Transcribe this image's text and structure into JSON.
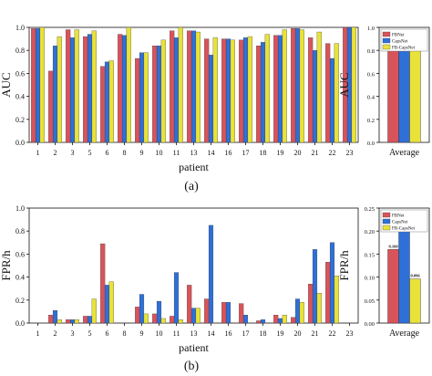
{
  "colors": {
    "FBNet": "#d9535a",
    "CapsNet": "#2f6fd8",
    "FB-CapsNet": "#e9e23a"
  },
  "chart_data": [
    {
      "id": "auc-patient",
      "type": "bar",
      "ylabel": "AUC",
      "xlabel": "patient",
      "ylim": [
        0,
        1.0
      ],
      "yticks": [
        0.0,
        0.2,
        0.4,
        0.6,
        0.8,
        1.0
      ],
      "ytick_labels": [
        "0.0",
        "0.2",
        "0.4",
        "0.6",
        "0.8",
        "1.0"
      ],
      "categories": [
        "1",
        "2",
        "3",
        "5",
        "6",
        "8",
        "9",
        "10",
        "11",
        "13",
        "14",
        "16",
        "17",
        "18",
        "19",
        "20",
        "21",
        "22",
        "23"
      ],
      "series": [
        {
          "name": "FBNet",
          "values": [
            0.99,
            0.62,
            0.98,
            0.92,
            0.66,
            0.94,
            0.73,
            0.84,
            0.97,
            0.97,
            0.9,
            0.9,
            0.89,
            0.84,
            0.93,
            0.99,
            0.91,
            0.86,
            1.0
          ]
        },
        {
          "name": "CapsNet",
          "values": [
            0.99,
            0.84,
            0.91,
            0.94,
            0.7,
            0.93,
            0.78,
            0.84,
            0.91,
            0.97,
            0.76,
            0.9,
            0.91,
            0.87,
            0.93,
            0.99,
            0.8,
            0.73,
            1.0
          ]
        },
        {
          "name": "FB-CapsNet",
          "values": [
            1.0,
            0.92,
            0.98,
            0.97,
            0.71,
            1.0,
            0.78,
            0.89,
            1.0,
            0.96,
            0.91,
            0.89,
            0.92,
            0.94,
            0.98,
            0.98,
            0.96,
            0.86,
            1.0
          ]
        }
      ],
      "caption": "(a)"
    },
    {
      "id": "auc-average",
      "type": "bar",
      "ylabel": "AUC",
      "xlabel": "Average",
      "ylim": [
        0,
        1.0
      ],
      "yticks": [
        0.0,
        0.2,
        0.4,
        0.6,
        0.8,
        1.0
      ],
      "ytick_labels": [
        "0.0",
        "0.2",
        "0.4",
        "0.6",
        "0.8",
        "1.0"
      ],
      "legend": [
        "FBNet",
        "CapsNet",
        "FB-CapsNet"
      ],
      "series": [
        {
          "name": "FBNet",
          "value": 0.888,
          "label": "0.888"
        },
        {
          "name": "CapsNet",
          "value": 0.877,
          "label": "0.877"
        },
        {
          "name": "FB-CapsNet",
          "value": 0.928,
          "label": "0.928"
        }
      ]
    },
    {
      "id": "fpr-patient",
      "type": "bar",
      "ylabel": "FPR/h",
      "xlabel": "patient",
      "ylim": [
        0,
        1.0
      ],
      "yticks": [
        0.0,
        0.2,
        0.4,
        0.6,
        0.8,
        1.0
      ],
      "ytick_labels": [
        "0.0",
        "0.2",
        "0.4",
        "0.6",
        "0.8",
        "1.0"
      ],
      "categories": [
        "1",
        "2",
        "3",
        "5",
        "6",
        "8",
        "9",
        "10",
        "11",
        "13",
        "14",
        "16",
        "17",
        "18",
        "19",
        "20",
        "21",
        "22",
        "23"
      ],
      "series": [
        {
          "name": "FBNet",
          "values": [
            0,
            0.07,
            0.03,
            0.06,
            0.69,
            0,
            0.14,
            0.08,
            0.06,
            0.33,
            0.21,
            0.18,
            0.17,
            0.02,
            0.07,
            0.05,
            0.34,
            0.53,
            0
          ]
        },
        {
          "name": "CapsNet",
          "values": [
            0,
            0.11,
            0.03,
            0.06,
            0.33,
            0,
            0.25,
            0.19,
            0.44,
            0.13,
            0.85,
            0.18,
            0.07,
            0.03,
            0.04,
            0.21,
            0.64,
            0.7,
            0
          ]
        },
        {
          "name": "FB-CapsNet",
          "values": [
            0,
            0.03,
            0.03,
            0.21,
            0.36,
            0,
            0.08,
            0.04,
            0.03,
            0.13,
            0,
            0,
            0,
            0,
            0.07,
            0.18,
            0.26,
            0.41,
            0
          ]
        }
      ],
      "caption": "(b)"
    },
    {
      "id": "fpr-average",
      "type": "bar",
      "ylabel": "FPR/h",
      "xlabel": "Average",
      "ylim": [
        0,
        0.25
      ],
      "yticks": [
        0.0,
        0.05,
        0.1,
        0.15,
        0.2,
        0.25
      ],
      "ytick_labels": [
        "0.00",
        "0.05",
        "0.10",
        "0.15",
        "0.20",
        "0.25"
      ],
      "legend": [
        "FBNet",
        "CapsNet",
        "FB-CapsNet"
      ],
      "series": [
        {
          "name": "FBNet",
          "value": 0.16,
          "label": "0.160"
        },
        {
          "name": "CapsNet",
          "value": 0.224,
          "label": "0.224"
        },
        {
          "name": "FB-CapsNet",
          "value": 0.096,
          "label": "0.096"
        }
      ]
    }
  ]
}
